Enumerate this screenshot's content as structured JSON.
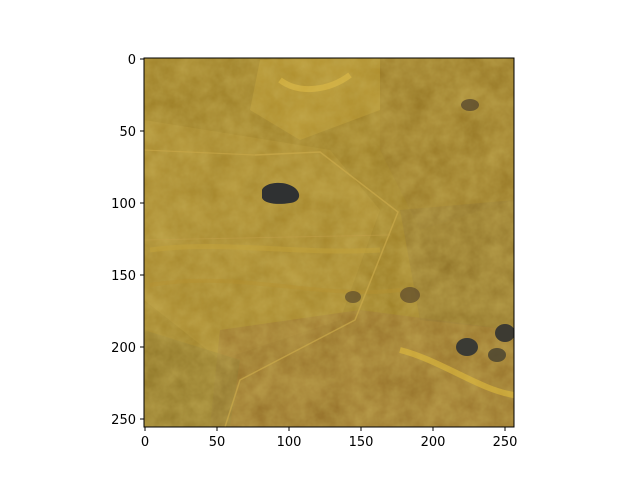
{
  "image_panel": {
    "description_kind": "satellite-like terrain raster shown with matplotlib axes",
    "x_ticks": [
      "0",
      "50",
      "100",
      "150",
      "200",
      "250"
    ],
    "y_ticks": [
      "0",
      "50",
      "100",
      "150",
      "200",
      "250"
    ],
    "x_range": [
      0,
      256
    ],
    "y_range": [
      0,
      256
    ],
    "y_axis_inverted": true,
    "colors": {
      "base": "#94741c",
      "light": "#c9a434",
      "dark_water": "#2f3132",
      "reddish": "#8b5e2a",
      "frame": "#000000"
    }
  }
}
